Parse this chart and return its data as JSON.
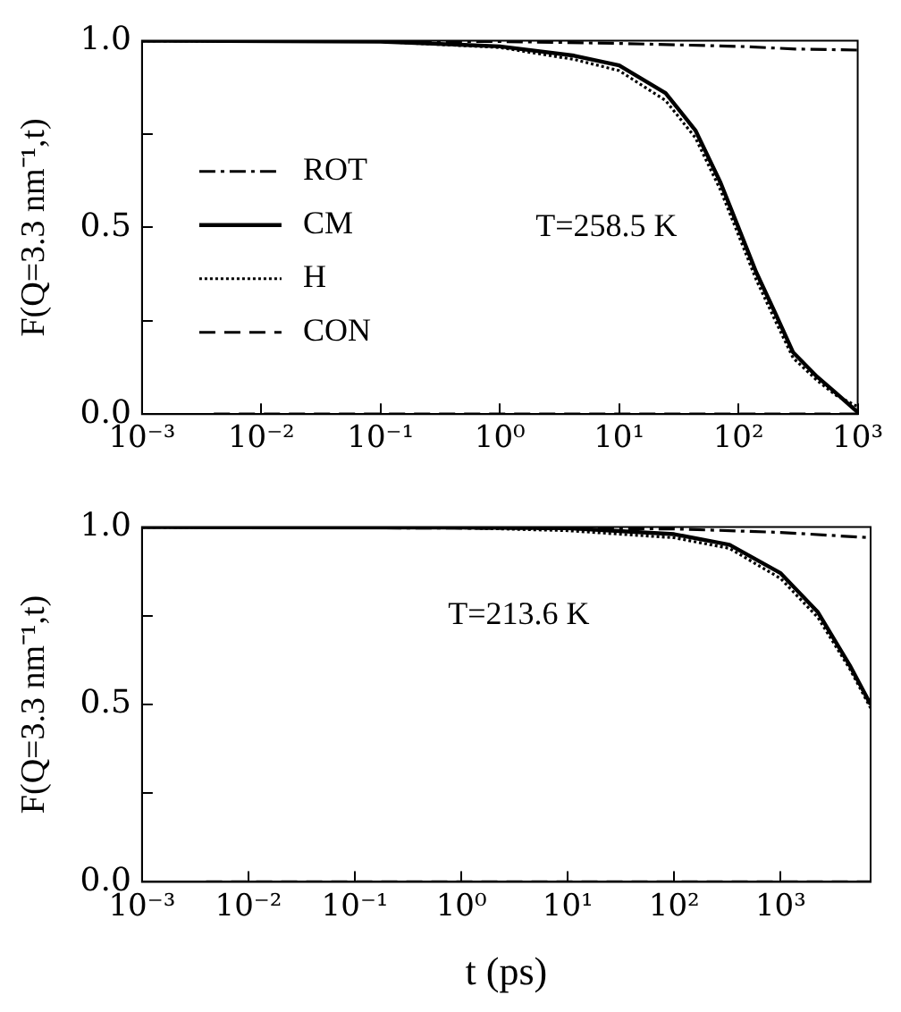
{
  "chart_data": [
    {
      "type": "line",
      "ylabel": "F(Q=3.3 nm⁻¹,t)",
      "annotations": [
        "T=258.5 K"
      ],
      "legend": "left",
      "log": "x",
      "xlim": [
        0.001,
        1000
      ],
      "xticks": [
        {
          "value": 0.001,
          "label": "10⁻³"
        },
        {
          "value": 0.01,
          "label": "10⁻²"
        },
        {
          "value": 0.1,
          "label": "10⁻¹"
        },
        {
          "value": 1,
          "label": "10⁰"
        },
        {
          "value": 10,
          "label": "10¹"
        },
        {
          "value": 100,
          "label": "10²"
        },
        {
          "value": 1000,
          "label": "10³"
        }
      ],
      "ylim": [
        0,
        1
      ],
      "yticks": [
        {
          "value": 0,
          "label": "0.0"
        },
        {
          "value": 0.25,
          "label": null
        },
        {
          "value": 0.5,
          "label": "0.5"
        },
        {
          "value": 0.75,
          "label": null
        },
        {
          "value": 1,
          "label": "1.0"
        }
      ],
      "series": [
        {
          "name": "ROT",
          "color": "#000000",
          "line_style": "dashdot",
          "x": [
            0.001,
            1,
            10,
            100,
            300,
            1000
          ],
          "values": [
            1,
            0.998,
            0.993,
            0.985,
            0.978,
            0.975
          ]
        },
        {
          "name": "CM",
          "color": "#000000",
          "line_style": "solid",
          "x": [
            0.001,
            0.1,
            1,
            4.2,
            10,
            24.5,
            43.6,
            70.8,
            100,
            141,
            204,
            288,
            457,
            661,
            1000
          ],
          "values": [
            1,
            0.998,
            0.985,
            0.96,
            0.934,
            0.86,
            0.76,
            0.62,
            0.5,
            0.38,
            0.27,
            0.165,
            0.1,
            0.056,
            0.005
          ]
        },
        {
          "name": "H",
          "color": "#000000",
          "line_style": "dotted",
          "x": [
            0.001,
            0.1,
            1,
            4.2,
            10,
            24.5,
            43.6,
            70.8,
            100,
            141,
            204,
            288,
            457,
            661,
            1000
          ],
          "values": [
            1,
            0.998,
            0.982,
            0.95,
            0.92,
            0.84,
            0.74,
            0.6,
            0.48,
            0.36,
            0.25,
            0.15,
            0.09,
            0.05,
            0.02
          ]
        },
        {
          "name": "CON",
          "color": "#000000",
          "line_style": "dashed",
          "x": [
            0.004,
            1000
          ],
          "values": [
            0,
            0
          ]
        }
      ]
    },
    {
      "type": "line",
      "ylabel": "F(Q=3.3 nm⁻¹,t)",
      "xlabel": "t (ps)",
      "annotations": [
        "T=213.6 K"
      ],
      "log": "x",
      "xlim": [
        0.001,
        7000
      ],
      "xticks": [
        {
          "value": 0.001,
          "label": "10⁻³"
        },
        {
          "value": 0.01,
          "label": "10⁻²"
        },
        {
          "value": 0.1,
          "label": "10⁻¹"
        },
        {
          "value": 1,
          "label": "10⁰"
        },
        {
          "value": 10,
          "label": "10¹"
        },
        {
          "value": 100,
          "label": "10²"
        },
        {
          "value": 1000,
          "label": "10³"
        }
      ],
      "ylim": [
        0,
        1
      ],
      "yticks": [
        {
          "value": 0,
          "label": "0.0"
        },
        {
          "value": 0.25,
          "label": null
        },
        {
          "value": 0.5,
          "label": "0.5"
        },
        {
          "value": 0.75,
          "label": null
        },
        {
          "value": 1,
          "label": "1.0"
        }
      ],
      "series": [
        {
          "color": "#000000",
          "line_style": "dashdot",
          "x": [
            0.001,
            100,
            1000,
            7000
          ],
          "values": [
            1,
            0.995,
            0.985,
            0.97
          ]
        },
        {
          "color": "#000000",
          "line_style": "solid",
          "x": [
            0.001,
            1,
            10,
            100,
            331,
            1000,
            2239,
            4467,
            7000
          ],
          "values": [
            1,
            0.999,
            0.997,
            0.98,
            0.95,
            0.87,
            0.76,
            0.61,
            0.5
          ]
        },
        {
          "color": "#000000",
          "line_style": "dotted",
          "x": [
            0.001,
            1,
            10,
            100,
            331,
            1000,
            2239,
            4467,
            7000
          ],
          "values": [
            1,
            0.998,
            0.99,
            0.97,
            0.94,
            0.855,
            0.745,
            0.6,
            0.49
          ]
        },
        {
          "color": "#000000",
          "line_style": "dashed",
          "x": [
            0.004,
            7000
          ],
          "values": [
            0,
            0
          ]
        }
      ]
    }
  ]
}
